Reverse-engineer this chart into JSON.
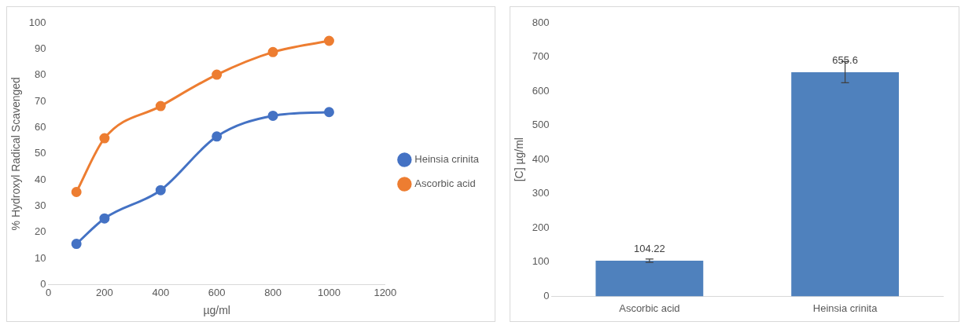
{
  "chart_data": [
    {
      "type": "line",
      "xlabel": "µg/ml",
      "ylabel": "% Hydroxyl Radical Scavenged",
      "x": [
        100,
        200,
        400,
        600,
        800,
        1000
      ],
      "xlim": [
        0,
        1200
      ],
      "xticks": [
        0,
        200,
        400,
        600,
        800,
        1000,
        1200
      ],
      "ylim": [
        0,
        100
      ],
      "yticks": [
        0,
        10,
        20,
        30,
        40,
        50,
        60,
        70,
        80,
        90,
        100
      ],
      "grid": false,
      "legend": "right",
      "marker": "circle",
      "series": [
        {
          "name": "Heinsia crinita",
          "color": "#4472c4",
          "values": [
            15.6,
            25.3,
            36.1,
            56.6,
            64.5,
            65.9
          ]
        },
        {
          "name": "Ascorbic acid",
          "color": "#ed7d31",
          "values": [
            35.4,
            55.9,
            68.2,
            80.2,
            88.8,
            93.1
          ]
        }
      ]
    },
    {
      "type": "bar",
      "ylabel": "[C] µg/ml",
      "categories": [
        "Ascorbic acid",
        "Heinsia crinita"
      ],
      "values": [
        104.22,
        655.6
      ],
      "errors": [
        5,
        31
      ],
      "color": "#4f81bd",
      "ylim": [
        0,
        800
      ],
      "yticks": [
        0,
        100,
        200,
        300,
        400,
        500,
        600,
        700,
        800
      ],
      "grid": false,
      "legend": false,
      "data_labels": true
    }
  ]
}
